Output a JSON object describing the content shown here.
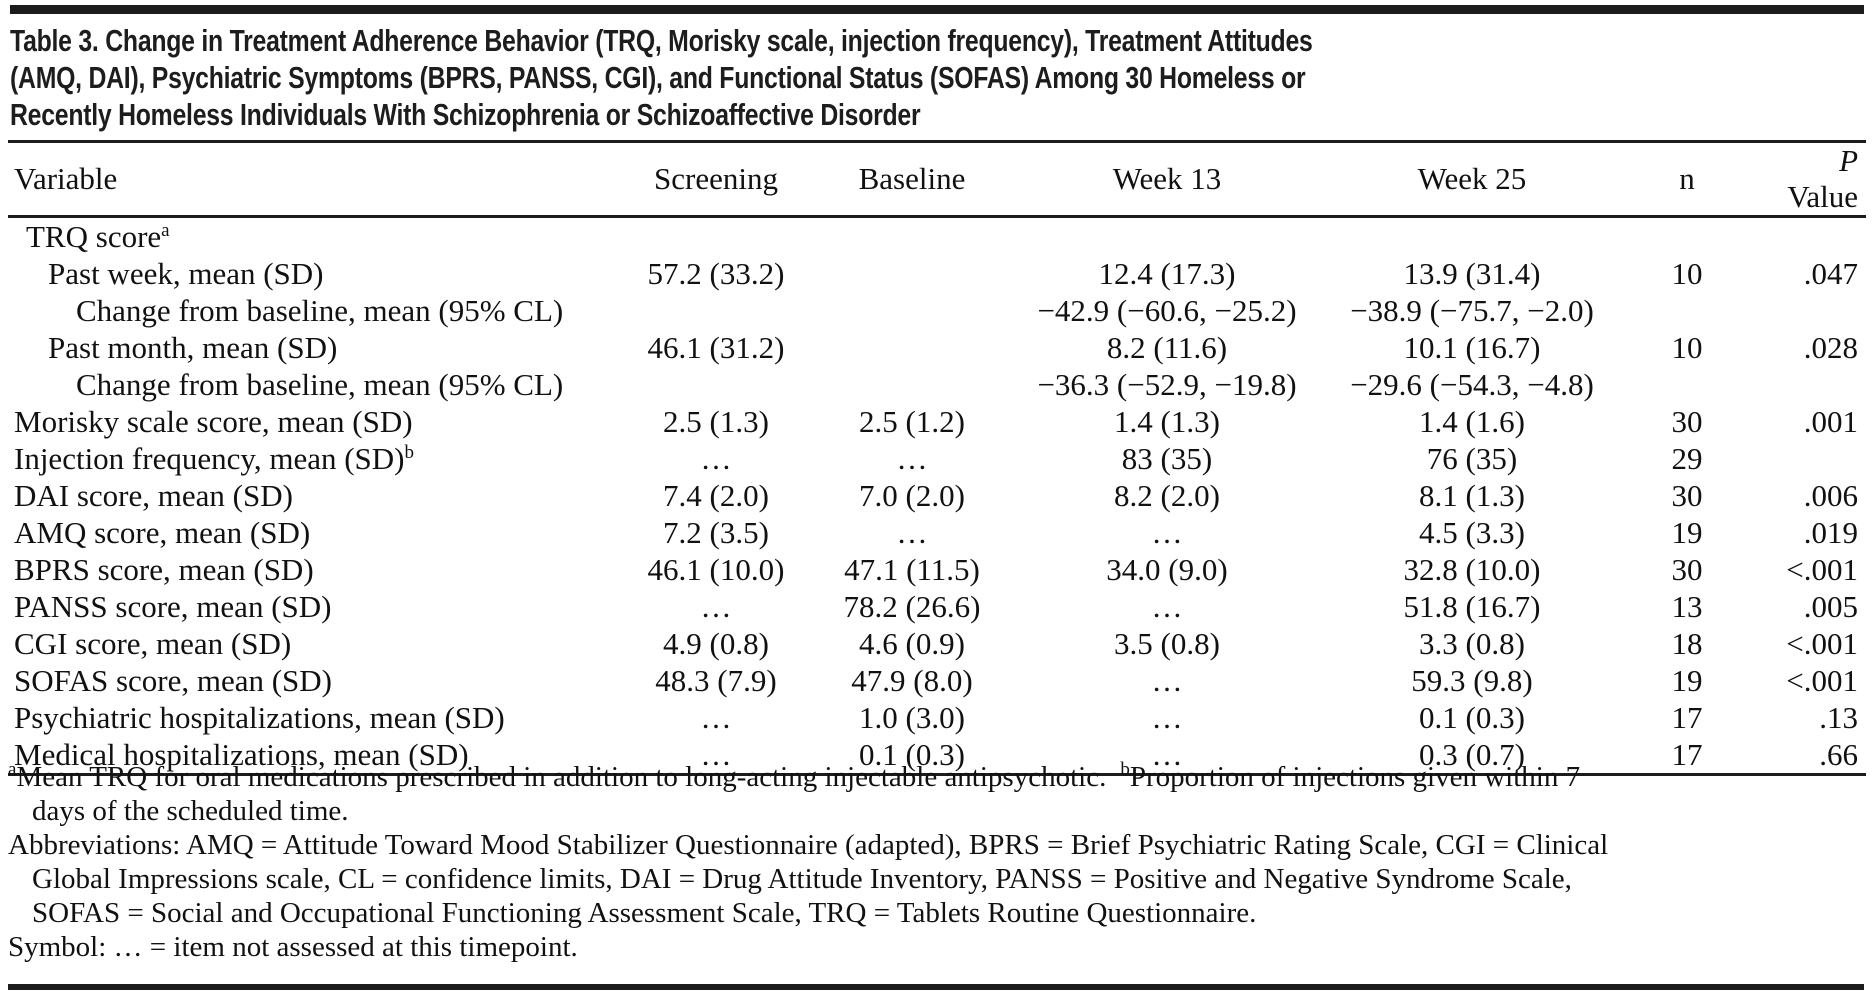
{
  "title": {
    "lines": [
      "Table 3. Change in Treatment Adherence Behavior (TRQ, Morisky scale, injection frequency), Treatment Attitudes",
      "(AMQ, DAI), Psychiatric Symptoms (BPRS, PANSS, CGI), and Functional Status (SOFAS) Among 30 Homeless or",
      "Recently Homeless Individuals With Schizophrenia or Schizoaffective Disorder"
    ]
  },
  "header": {
    "variable": "Variable",
    "screening": "Screening",
    "baseline": "Baseline",
    "week13": "Week 13",
    "week25": "Week 25",
    "n": "n",
    "p_prefix": "P",
    "p_suffix": "Value"
  },
  "table": {
    "rows": [
      {
        "label": "TRQ score",
        "sup": "a",
        "indent": 1,
        "cells": [
          "",
          "",
          "",
          "",
          "",
          ""
        ]
      },
      {
        "label": "Past week, mean (SD)",
        "sup": "",
        "indent": 2,
        "cells": [
          "57.2 (33.2)",
          "",
          "12.4 (17.3)",
          "13.9 (31.4)",
          "10",
          ".047"
        ]
      },
      {
        "label": "Change from baseline, mean (95% CL)",
        "sup": "",
        "indent": 3,
        "cells": [
          "",
          "",
          "−42.9 (−60.6, −25.2)",
          "−38.9 (−75.7, −2.0)",
          "",
          ""
        ]
      },
      {
        "label": "Past month, mean (SD)",
        "sup": "",
        "indent": 2,
        "cells": [
          "46.1 (31.2)",
          "",
          "8.2 (11.6)",
          "10.1 (16.7)",
          "10",
          ".028"
        ]
      },
      {
        "label": "Change from baseline, mean (95% CL)",
        "sup": "",
        "indent": 3,
        "cells": [
          "",
          "",
          "−36.3 (−52.9, −19.8)",
          "−29.6 (−54.3, −4.8)",
          "",
          ""
        ]
      },
      {
        "label": "Morisky scale score, mean (SD)",
        "sup": "",
        "indent": 0,
        "cells": [
          "2.5 (1.3)",
          "2.5 (1.2)",
          "1.4 (1.3)",
          "1.4 (1.6)",
          "30",
          ".001"
        ]
      },
      {
        "label": "Injection frequency, mean (SD)",
        "sup": "b",
        "indent": 0,
        "cells": [
          "…",
          "…",
          "83 (35)",
          "76 (35)",
          "29",
          ""
        ]
      },
      {
        "label": "DAI score, mean (SD)",
        "sup": "",
        "indent": 0,
        "cells": [
          "7.4 (2.0)",
          "7.0 (2.0)",
          "8.2 (2.0)",
          "8.1 (1.3)",
          "30",
          ".006"
        ]
      },
      {
        "label": "AMQ score, mean (SD)",
        "sup": "",
        "indent": 0,
        "cells": [
          "7.2 (3.5)",
          "…",
          "…",
          "4.5 (3.3)",
          "19",
          ".019"
        ]
      },
      {
        "label": "BPRS score, mean (SD)",
        "sup": "",
        "indent": 0,
        "cells": [
          "46.1 (10.0)",
          "47.1 (11.5)",
          "34.0 (9.0)",
          "32.8 (10.0)",
          "30",
          "<.001"
        ]
      },
      {
        "label": "PANSS score, mean (SD)",
        "sup": "",
        "indent": 0,
        "cells": [
          "…",
          "78.2 (26.6)",
          "…",
          "51.8 (16.7)",
          "13",
          ".005"
        ]
      },
      {
        "label": "CGI score, mean (SD)",
        "sup": "",
        "indent": 0,
        "cells": [
          "4.9 (0.8)",
          "4.6 (0.9)",
          "3.5 (0.8)",
          "3.3 (0.8)",
          "18",
          "<.001"
        ]
      },
      {
        "label": "SOFAS score, mean (SD)",
        "sup": "",
        "indent": 0,
        "cells": [
          "48.3 (7.9)",
          "47.9 (8.0)",
          "…",
          "59.3 (9.8)",
          "19",
          "<.001"
        ]
      },
      {
        "label": "Psychiatric hospitalizations, mean (SD)",
        "sup": "",
        "indent": 0,
        "cells": [
          "…",
          "1.0 (3.0)",
          "…",
          "0.1 (0.3)",
          "17",
          ".13"
        ]
      },
      {
        "label": "Medical hospitalizations, mean (SD)",
        "sup": "",
        "indent": 0,
        "cells": [
          "…",
          "0.1 (0.3)",
          "…",
          "0.3 (0.7)",
          "17",
          ".66"
        ]
      }
    ]
  },
  "footnotes": {
    "a_marker": "a",
    "a_text": "Mean TRQ for oral medications prescribed in addition to long-acting injectable antipsychotic.",
    "b_marker": "b",
    "b_text": "Proportion of injections given within 7",
    "ab_line2": "days of the scheduled time.",
    "abbrev_line1": "Abbreviations: AMQ = Attitude Toward Mood Stabilizer Questionnaire (adapted), BPRS = Brief Psychiatric Rating Scale, CGI = Clinical",
    "abbrev_line2": "Global Impressions scale, CL = confidence limits, DAI = Drug Attitude Inventory, PANSS = Positive and Negative Syndrome Scale,",
    "abbrev_line3": "SOFAS = Social and Occupational Functioning Assessment Scale, TRQ = Tablets Routine Questionnaire.",
    "symbol_line": "Symbol: … = item not assessed at this timepoint."
  }
}
